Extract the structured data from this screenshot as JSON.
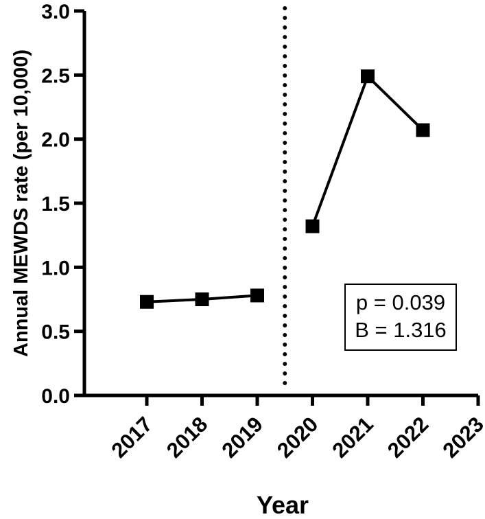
{
  "chart_data": {
    "type": "line",
    "title": "",
    "xlabel": "Year",
    "ylabel": "Annual MEWDS rate (per 10,000)",
    "x_categories": [
      "2017",
      "2018",
      "2019",
      "2020",
      "2021",
      "2022",
      "2023"
    ],
    "ylim": [
      0,
      3.0
    ],
    "yticks": [
      0.0,
      0.5,
      1.0,
      1.5,
      2.0,
      2.5,
      3.0
    ],
    "ytick_labels": [
      "0.0",
      "0.5",
      "1.0",
      "1.5",
      "2.0",
      "2.5",
      "3.0"
    ],
    "grid": false,
    "marker": "square",
    "series": [
      {
        "segment": "pre",
        "points": [
          {
            "x": "2017",
            "y": 0.73
          },
          {
            "x": "2018",
            "y": 0.75
          },
          {
            "x": "2019",
            "y": 0.78
          }
        ]
      },
      {
        "segment": "post",
        "points": [
          {
            "x": "2020",
            "y": 1.32
          },
          {
            "x": "2021",
            "y": 2.49
          },
          {
            "x": "2022",
            "y": 2.07
          }
        ]
      }
    ],
    "reference_line": {
      "style": "dotted",
      "orientation": "vertical",
      "between": [
        "2019",
        "2020"
      ]
    },
    "annotation": {
      "lines": [
        "p = 0.039",
        "B = 1.316"
      ],
      "placement": "lower-right"
    },
    "colors": {
      "line": "#000000",
      "marker": "#000000"
    }
  }
}
